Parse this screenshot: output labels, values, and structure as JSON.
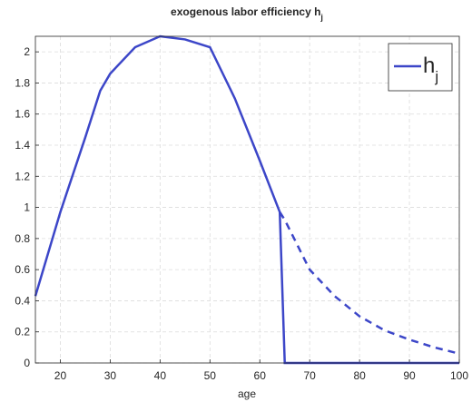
{
  "chart_data": {
    "type": "line",
    "title": "exogenous labor efficiency h",
    "title_subscript": "j",
    "xlabel": "age",
    "xlim": [
      15,
      100
    ],
    "xticks": [
      20,
      30,
      40,
      50,
      60,
      70,
      80,
      90,
      100
    ],
    "ylim": [
      0,
      2.1
    ],
    "yticks": [
      0,
      0.2,
      0.4,
      0.6,
      0.8,
      1,
      1.2,
      1.4,
      1.6,
      1.8,
      2
    ],
    "grid": true,
    "legend": "top-right",
    "series": [
      {
        "name": "h",
        "name_subscript": "j",
        "color": "#3c46c8",
        "style": "solid",
        "x": [
          15,
          20,
          25,
          28,
          30,
          35,
          40,
          45,
          50,
          55,
          60,
          64,
          65,
          100
        ],
        "values": [
          0.43,
          0.97,
          1.45,
          1.75,
          1.86,
          2.03,
          2.1,
          2.08,
          2.03,
          1.7,
          1.3,
          0.97,
          0,
          0
        ]
      },
      {
        "color": "#3c46c8",
        "style": "dashed",
        "x": [
          64,
          65,
          70,
          75,
          80,
          85,
          90,
          95,
          100
        ],
        "values": [
          0.97,
          0.92,
          0.6,
          0.43,
          0.3,
          0.21,
          0.15,
          0.1,
          0.06
        ]
      }
    ]
  }
}
